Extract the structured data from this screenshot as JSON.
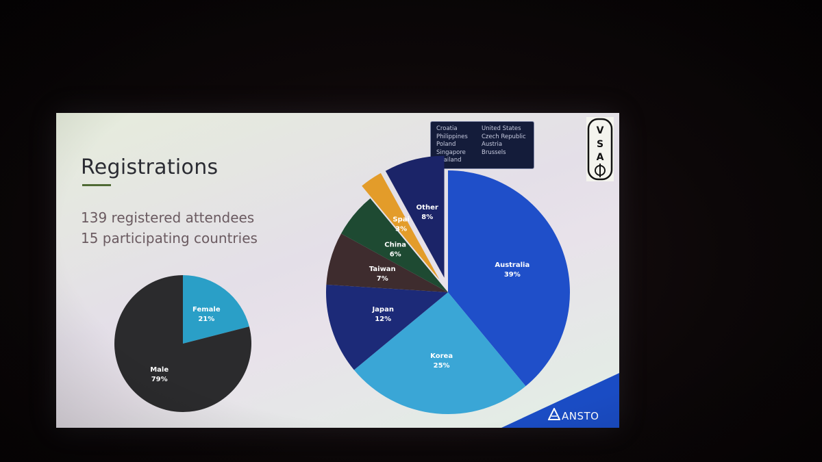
{
  "slide": {
    "title": "Registrations",
    "stat_line_1": "139 registered attendees",
    "stat_line_2": "15 participating countries",
    "brand": "ANSTO",
    "other_countries": [
      "Croatia",
      "United States",
      "Philippines",
      "Czech Republic",
      "Poland",
      "Austria",
      "Singapore",
      "Brussels",
      "Thailand"
    ]
  },
  "chart_data": [
    {
      "type": "pie",
      "title": "",
      "slices": [
        {
          "label": "Female",
          "value": 21,
          "display": "21%",
          "color": "#2a9fc7"
        },
        {
          "label": "Male",
          "value": 79,
          "display": "79%",
          "color": "#2b2b2d"
        }
      ]
    },
    {
      "type": "pie",
      "title": "",
      "slices": [
        {
          "label": "Australia",
          "value": 39,
          "display": "39%",
          "color": "#1f4fc9"
        },
        {
          "label": "Korea",
          "value": 25,
          "display": "25%",
          "color": "#3aa6d6"
        },
        {
          "label": "Japan",
          "value": 12,
          "display": "12%",
          "color": "#1c2a78"
        },
        {
          "label": "Taiwan",
          "value": 7,
          "display": "7%",
          "color": "#3e2c2e"
        },
        {
          "label": "China",
          "value": 6,
          "display": "6%",
          "color": "#1e4a32"
        },
        {
          "label": "Spai",
          "value": 3,
          "display": "3%",
          "color": "#e39c2a",
          "exploded": true
        },
        {
          "label": "Other",
          "value": 8,
          "display": "8%",
          "color": "#1b2468",
          "exploded": true
        }
      ]
    }
  ]
}
